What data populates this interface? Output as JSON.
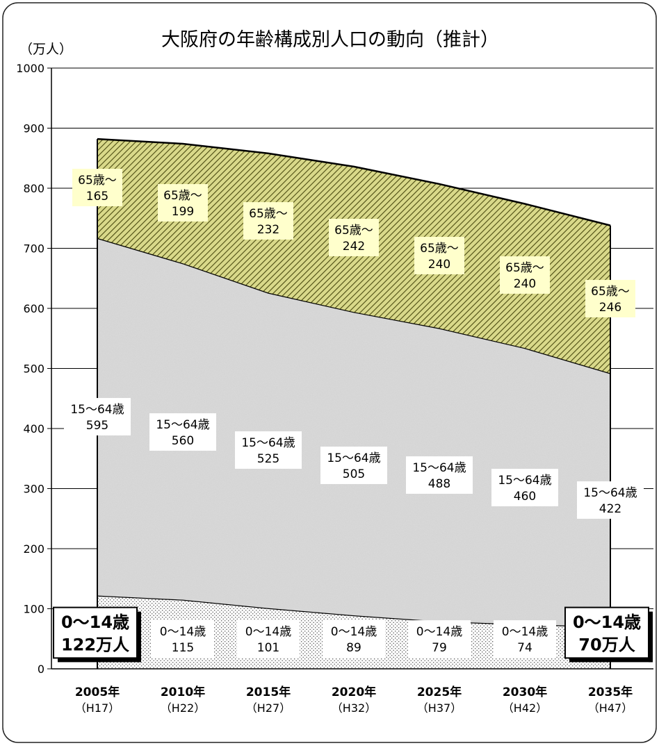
{
  "chart_data": {
    "type": "area",
    "stacked": true,
    "title": "大阪府の年齢構成別人口の動向（推計）",
    "unit_label": "（万人）",
    "ylim": [
      0,
      1000
    ],
    "yticks": [
      "0",
      "100",
      "200",
      "300",
      "400",
      "500",
      "600",
      "700",
      "800",
      "900",
      "1000"
    ],
    "grid": true,
    "categories": [
      "2005年",
      "2010年",
      "2015年",
      "2020年",
      "2025年",
      "2030年",
      "2035年"
    ],
    "category_sublabels": [
      "（H17）",
      "（H22）",
      "（H27）",
      "（H32）",
      "（H37）",
      "（H42）",
      "（H47）"
    ],
    "series": [
      {
        "key": "young",
        "values": [
          122,
          115,
          101,
          89,
          79,
          74,
          70
        ],
        "labels": [
          [
            "0～14歳",
            "122万人"
          ],
          [
            "0～14歳",
            "115"
          ],
          [
            "0～14歳",
            "101"
          ],
          [
            "0～14歳",
            "89"
          ],
          [
            "0～14歳",
            "79"
          ],
          [
            "0～14歳",
            "74"
          ],
          [
            "0～14歳",
            "70万人"
          ]
        ],
        "color": "#ffffff"
      },
      {
        "key": "working",
        "values": [
          595,
          560,
          525,
          505,
          488,
          460,
          422
        ],
        "labels": [
          [
            "15～64歳",
            "595"
          ],
          [
            "15～64歳",
            "560"
          ],
          [
            "15～64歳",
            "525"
          ],
          [
            "15～64歳",
            "505"
          ],
          [
            "15～64歳",
            "488"
          ],
          [
            "15～64歳",
            "460"
          ],
          [
            "15～64歳",
            "422"
          ]
        ],
        "color": "#e6e6e6"
      },
      {
        "key": "elderly",
        "values": [
          165,
          199,
          232,
          242,
          240,
          240,
          246
        ],
        "labels": [
          [
            "65歳～",
            "165"
          ],
          [
            "65歳～",
            "199"
          ],
          [
            "65歳～",
            "232"
          ],
          [
            "65歳～",
            "242"
          ],
          [
            "65歳～",
            "240"
          ],
          [
            "65歳～",
            "240"
          ],
          [
            "65歳～",
            "246"
          ]
        ],
        "color": "#c8c864",
        "label_bg": "#ffffcc"
      }
    ]
  }
}
